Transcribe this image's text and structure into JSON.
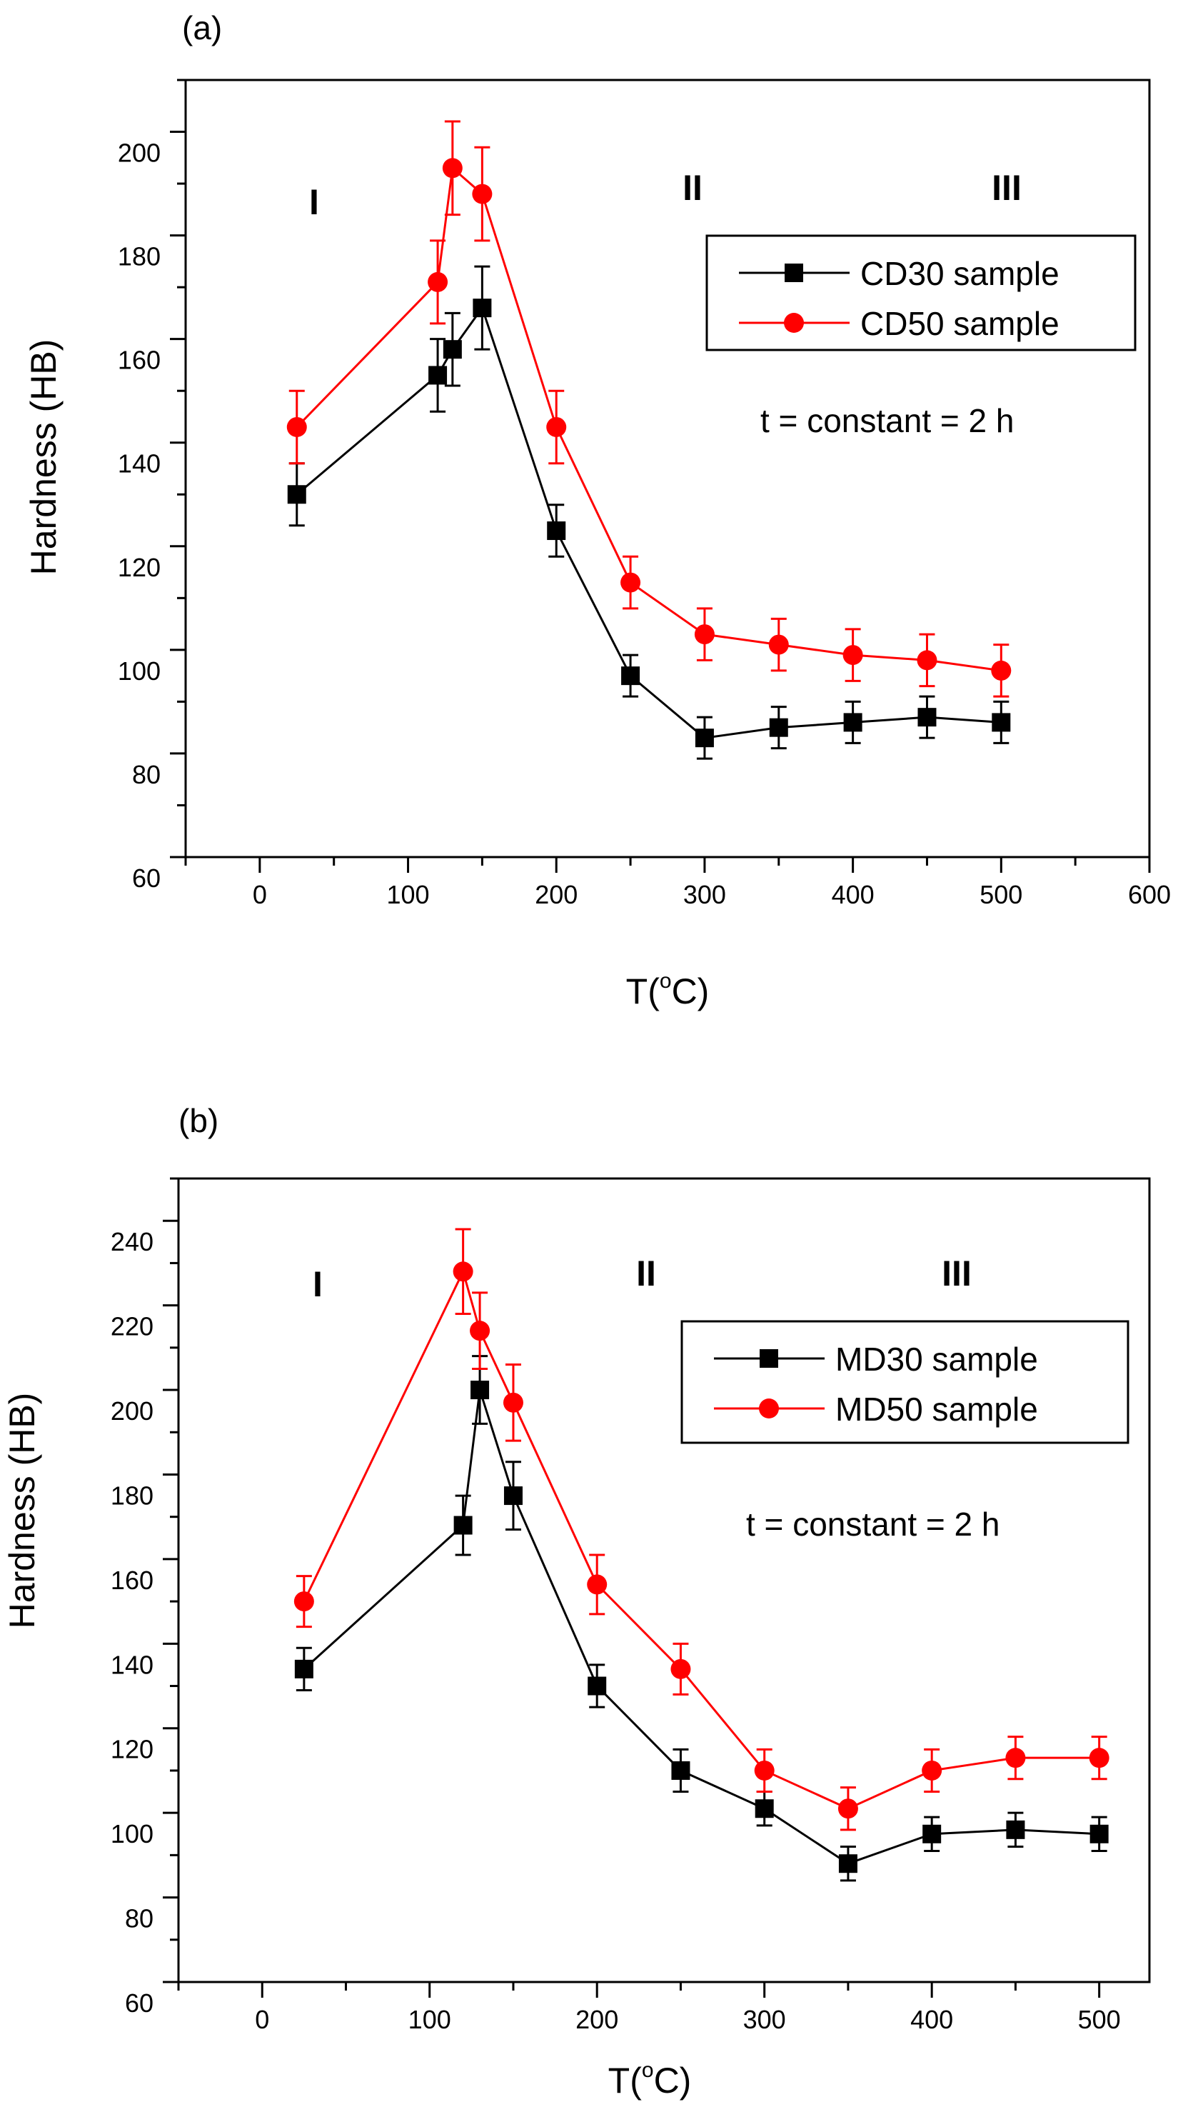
{
  "chart_data": [
    {
      "type": "line",
      "panel_label": "(a)",
      "xlabel_base": "T(",
      "xlabel_sup": "o",
      "xlabel_tail": "C)",
      "ylabel": "Hardness (HB)",
      "xlim": [
        -50,
        600
      ],
      "ylim": [
        60,
        210
      ],
      "xticks": [
        0,
        100,
        200,
        300,
        400,
        500,
        600
      ],
      "yticks": [
        60,
        80,
        100,
        120,
        140,
        160,
        180,
        200
      ],
      "x": [
        25,
        120,
        130,
        150,
        200,
        250,
        300,
        350,
        400,
        450,
        500
      ],
      "series": [
        {
          "name": "CD30 sample",
          "color": "#000000",
          "marker": "square",
          "values": [
            130,
            153,
            158,
            166,
            123,
            95,
            83,
            85,
            86,
            87,
            86
          ],
          "errors": [
            6,
            7,
            7,
            8,
            5,
            4,
            4,
            4,
            4,
            4,
            4
          ]
        },
        {
          "name": "CD50 sample",
          "color": "#ff0000",
          "marker": "circle",
          "values": [
            143,
            171,
            193,
            188,
            143,
            113,
            103,
            101,
            99,
            98,
            96
          ],
          "errors": [
            7,
            8,
            9,
            9,
            7,
            5,
            5,
            5,
            5,
            5,
            5
          ]
        }
      ],
      "regions": [
        "I",
        "II",
        "III"
      ],
      "annotation": "t = constant = 2 h"
    },
    {
      "type": "line",
      "panel_label": "(b)",
      "xlabel_base": "T(",
      "xlabel_sup": "o",
      "xlabel_tail": "C)",
      "ylabel": "Hardness (HB)",
      "xlim": [
        -50,
        530
      ],
      "ylim": [
        60,
        250
      ],
      "xticks": [
        0,
        100,
        200,
        300,
        400,
        500
      ],
      "yticks": [
        60,
        80,
        100,
        120,
        140,
        160,
        180,
        200,
        220,
        240
      ],
      "x": [
        25,
        120,
        130,
        150,
        200,
        250,
        300,
        350,
        400,
        450,
        500
      ],
      "series": [
        {
          "name": "MD30 sample",
          "color": "#000000",
          "marker": "square",
          "values": [
            134,
            168,
            200,
            175,
            130,
            110,
            101,
            88,
            95,
            96,
            95
          ],
          "errors": [
            5,
            7,
            8,
            8,
            5,
            5,
            4,
            4,
            4,
            4,
            4
          ]
        },
        {
          "name": "MD50 sample",
          "color": "#ff0000",
          "marker": "circle",
          "values": [
            150,
            228,
            214,
            197,
            154,
            134,
            110,
            101,
            110,
            113,
            113
          ],
          "errors": [
            6,
            10,
            9,
            9,
            7,
            6,
            5,
            5,
            5,
            5,
            5
          ]
        }
      ],
      "regions": [
        "I",
        "II",
        "III"
      ],
      "annotation": "t = constant = 2 h"
    }
  ]
}
